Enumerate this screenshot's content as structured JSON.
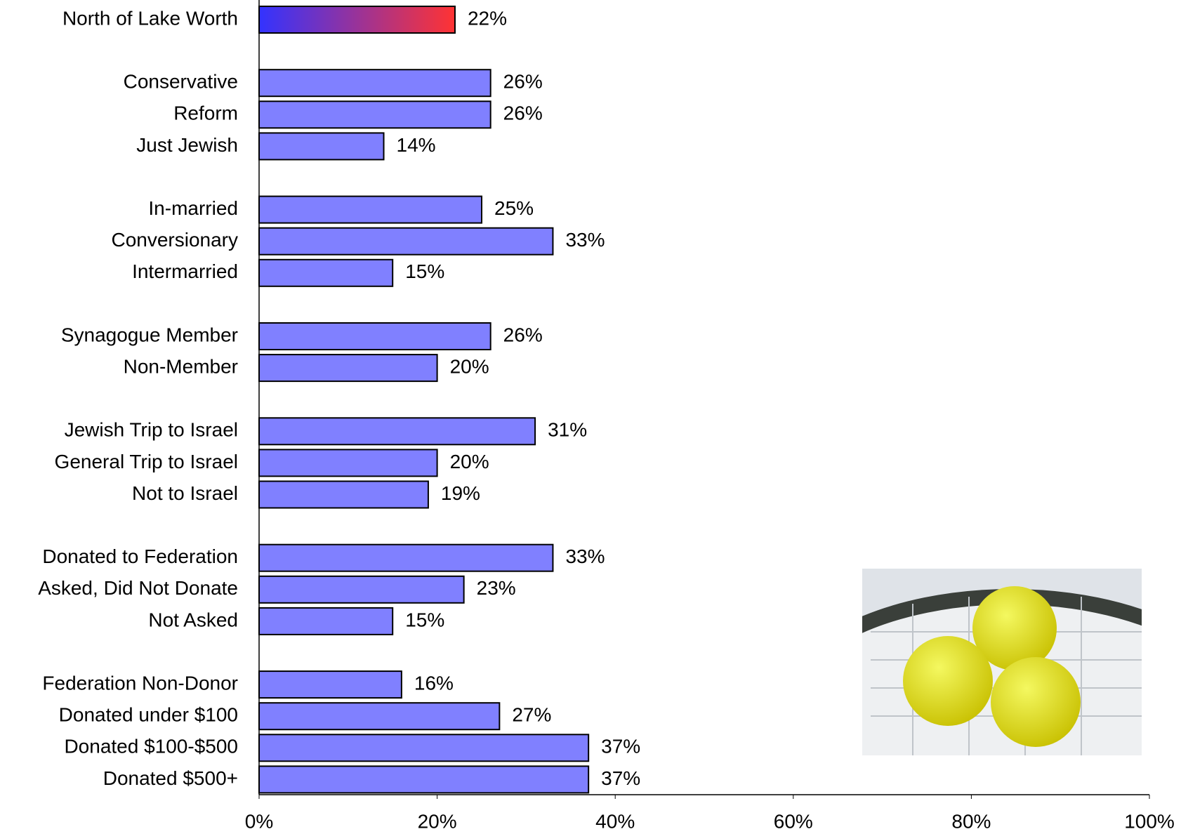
{
  "chart_data": {
    "type": "bar",
    "orientation": "horizontal",
    "categories": [
      "North of Lake Worth",
      null,
      "Conservative",
      "Reform",
      "Just Jewish",
      null,
      "In-married",
      "Conversionary",
      "Intermarried",
      null,
      "Synagogue Member",
      "Non-Member",
      null,
      "Jewish Trip to Israel",
      "General Trip to Israel",
      "Not to Israel",
      null,
      "Donated to Federation",
      "Asked, Did Not Donate",
      "Not Asked",
      null,
      "Federation Non-Donor",
      "Donated under $100",
      "Donated $100-$500",
      "Donated $500+"
    ],
    "values": [
      22,
      null,
      26,
      26,
      14,
      null,
      25,
      33,
      15,
      null,
      26,
      20,
      null,
      31,
      20,
      19,
      null,
      33,
      23,
      15,
      null,
      16,
      27,
      37,
      37
    ],
    "value_labels": [
      "22%",
      null,
      "26%",
      "26%",
      "14%",
      null,
      "25%",
      "33%",
      "15%",
      null,
      "26%",
      "20%",
      null,
      "31%",
      "20%",
      "19%",
      null,
      "33%",
      "23%",
      "15%",
      null,
      "16%",
      "27%",
      "37%",
      "37%"
    ],
    "color": "#8080ff",
    "highlight": {
      "index": 0,
      "colors": [
        "#3333ff",
        "#ff3333"
      ]
    },
    "xlim": [
      0,
      100
    ],
    "xticks": [
      {
        "value": 0,
        "label": "0%"
      },
      {
        "value": 20,
        "label": "20%"
      },
      {
        "value": 40,
        "label": "40%"
      },
      {
        "value": 60,
        "label": "60%"
      },
      {
        "value": 80,
        "label": "80%"
      },
      {
        "value": 100,
        "label": "100%"
      }
    ],
    "grid": false
  }
}
